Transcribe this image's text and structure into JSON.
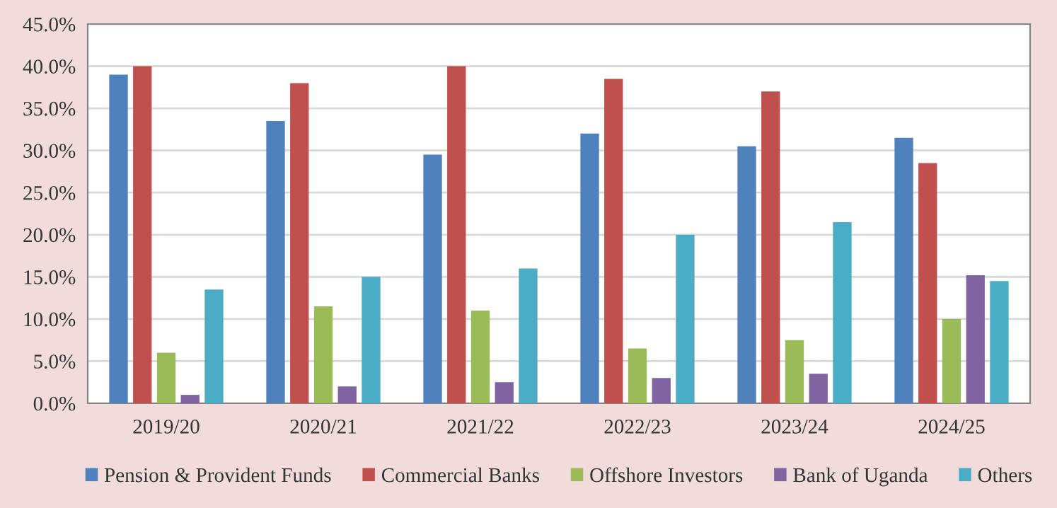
{
  "chart_data": {
    "type": "bar",
    "categories": [
      "2019/20",
      "2020/21",
      "2021/22",
      "2022/23",
      "2023/24",
      "2024/25"
    ],
    "series": [
      {
        "name": "Pension & Provident Funds",
        "color": "#4f81bd",
        "values": [
          39,
          33.5,
          29.5,
          32,
          30.5,
          31.5
        ]
      },
      {
        "name": "Commercial Banks",
        "color": "#c0504d",
        "values": [
          40,
          38,
          40,
          38.5,
          37,
          28.5
        ]
      },
      {
        "name": "Offshore Investors",
        "color": "#9bbb59",
        "values": [
          6,
          11.5,
          11,
          6.5,
          7.5,
          10
        ]
      },
      {
        "name": "Bank of Uganda",
        "color": "#8064a2",
        "values": [
          1,
          2,
          2.5,
          3,
          3.5,
          15.2
        ]
      },
      {
        "name": "Others",
        "color": "#4bacc6",
        "values": [
          13.5,
          15,
          16,
          20,
          21.5,
          14.5
        ]
      }
    ],
    "ylim": [
      0,
      45
    ],
    "yticks": [
      {
        "value": 0,
        "label": "0.0%"
      },
      {
        "value": 5,
        "label": "5.0%"
      },
      {
        "value": 10,
        "label": "10.0%"
      },
      {
        "value": 15,
        "label": "15.0%"
      },
      {
        "value": 20,
        "label": "20.0%"
      },
      {
        "value": 25,
        "label": "25.0%"
      },
      {
        "value": 30,
        "label": "30.0%"
      },
      {
        "value": 35,
        "label": "35.0%"
      },
      {
        "value": 40,
        "label": "40.0%"
      },
      {
        "value": 45,
        "label": "45.0%"
      }
    ],
    "grid": "y",
    "legend": "bottom"
  }
}
